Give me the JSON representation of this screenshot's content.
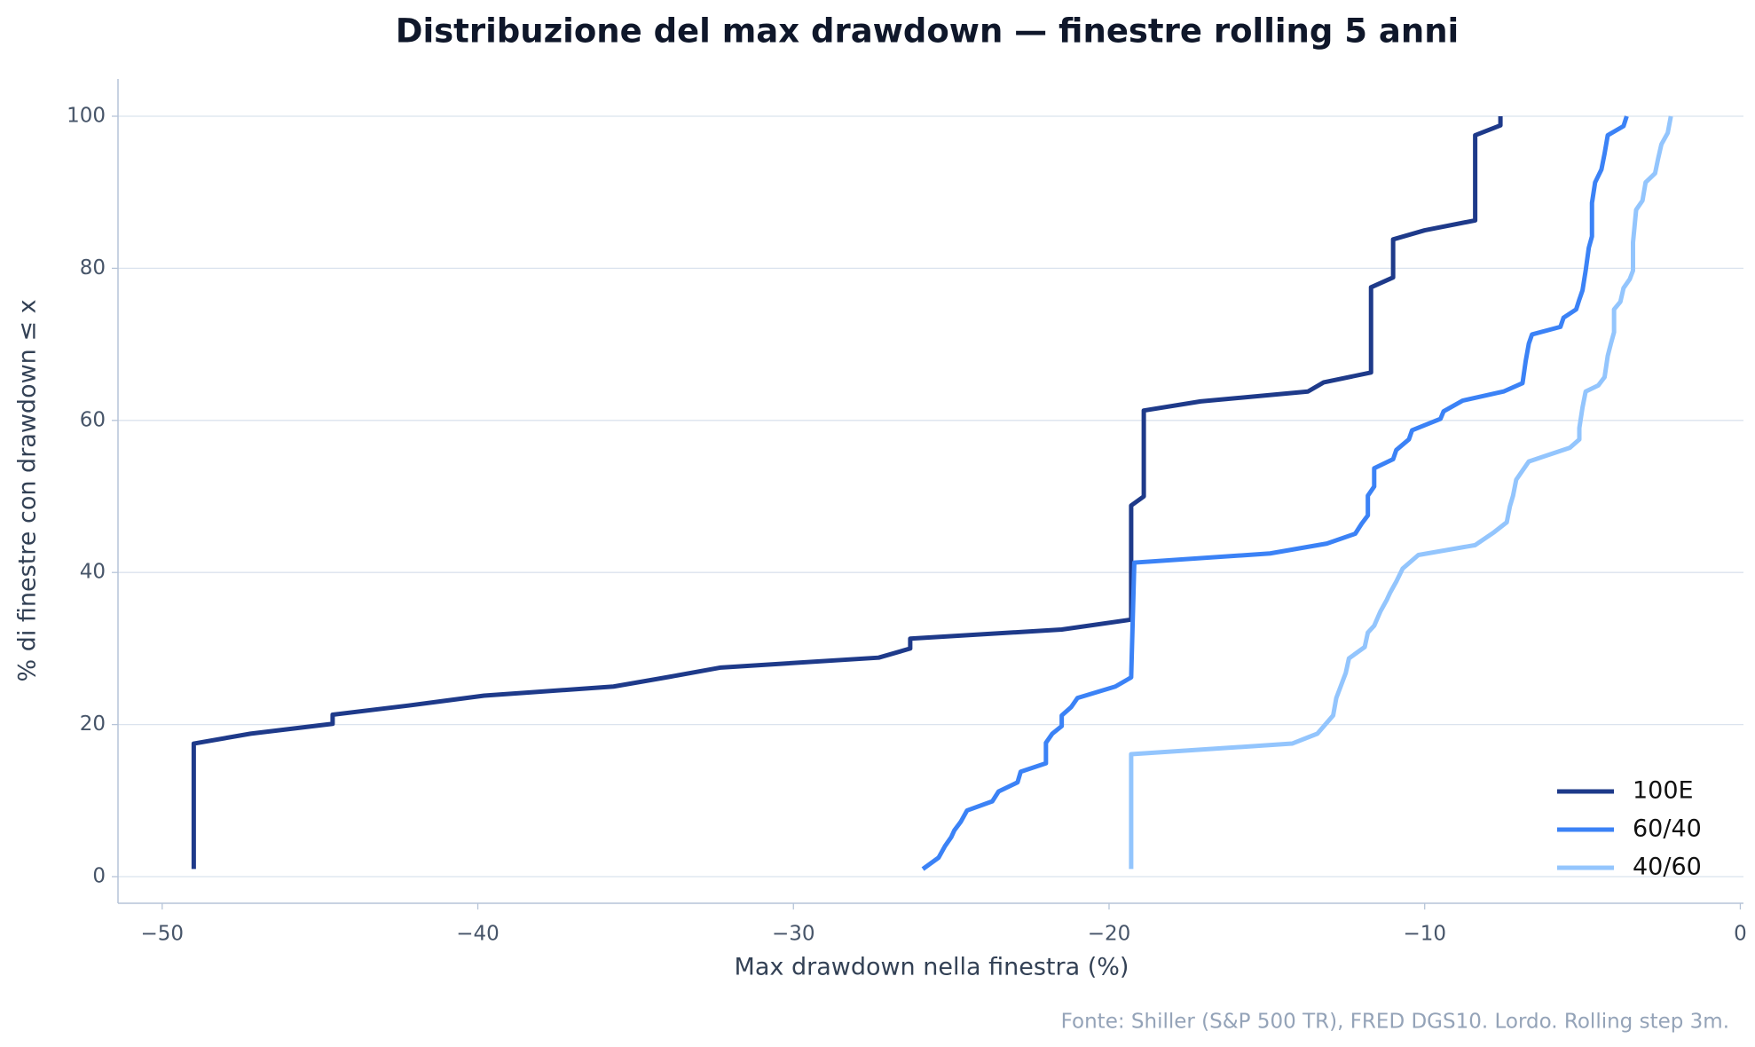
{
  "chart_data": {
    "type": "line",
    "title": "Distribuzione del max drawdown — finestre rolling 5 anni",
    "x_label": "Max drawdown nella finestra (%)",
    "y_label": "% di finestre con drawdown ≤ x",
    "source": "Fonte: Shiller (S&P 500 TR), FRED DGS10. Lordo. Rolling step 3m.",
    "xlim": [
      -51.4,
      0.1
    ],
    "ylim": [
      -3.5,
      104.9
    ],
    "xticks": [
      {
        "value": -50,
        "label": "−50"
      },
      {
        "value": -40,
        "label": "−40"
      },
      {
        "value": -30,
        "label": "−30"
      },
      {
        "value": -20,
        "label": "−20"
      },
      {
        "value": -10,
        "label": "−10"
      },
      0
    ],
    "yticks": [
      0,
      20,
      40,
      60,
      80,
      100
    ],
    "grid": "y",
    "legend": "lower right",
    "series": [
      {
        "name": "100E",
        "color": "#1e3a8a",
        "x": [
          -49.0,
          -49.0,
          -47.2,
          -44.6,
          -44.6,
          -42.2,
          -39.8,
          -35.7,
          -33.9,
          -32.3,
          -27.3,
          -26.3,
          -26.3,
          -21.5,
          -19.3,
          -19.3,
          -18.9,
          -18.9,
          -17.1,
          -13.7,
          -13.2,
          -11.7,
          -11.7,
          -11.0,
          -11.0,
          -10.0,
          -8.4,
          -8.4,
          -7.6,
          -7.6
        ],
        "values": [
          1.0,
          17.5,
          18.8,
          20.1,
          21.3,
          22.5,
          23.8,
          25.0,
          26.3,
          27.5,
          28.8,
          30.0,
          31.3,
          32.5,
          33.8,
          48.8,
          50.0,
          61.3,
          62.5,
          63.8,
          65.0,
          66.3,
          77.5,
          78.8,
          83.8,
          85.0,
          86.3,
          97.5,
          98.8,
          100.0
        ]
      },
      {
        "name": "60/40",
        "color": "#3b82f6",
        "x": [
          -25.9,
          -25.4,
          -25.2,
          -25.0,
          -24.9,
          -24.7,
          -24.5,
          -23.7,
          -23.5,
          -22.9,
          -22.8,
          -22.0,
          -22.0,
          -21.8,
          -21.5,
          -21.5,
          -21.2,
          -21.0,
          -19.8,
          -19.3,
          -19.2,
          -14.9,
          -13.1,
          -12.2,
          -12.0,
          -11.8,
          -11.8,
          -11.6,
          -11.6,
          -11.0,
          -10.9,
          -10.5,
          -10.4,
          -9.5,
          -9.4,
          -8.8,
          -7.5,
          -6.9,
          -6.8,
          -6.7,
          -6.6,
          -5.7,
          -5.6,
          -5.2,
          -5.1,
          -5.0,
          -4.9,
          -4.8,
          -4.7,
          -4.7,
          -4.6,
          -4.4,
          -4.3,
          -4.2,
          -3.7,
          -3.6
        ],
        "values": [
          1.0,
          2.5,
          4.0,
          5.2,
          6.1,
          7.2,
          8.7,
          9.9,
          11.2,
          12.4,
          13.8,
          14.9,
          17.6,
          18.8,
          19.8,
          21.2,
          22.3,
          23.5,
          25.0,
          26.2,
          41.3,
          42.5,
          43.8,
          45.1,
          46.4,
          47.5,
          50.1,
          51.3,
          53.7,
          54.9,
          56.1,
          57.5,
          58.7,
          60.2,
          61.2,
          62.6,
          63.8,
          64.9,
          67.8,
          70.1,
          71.3,
          72.3,
          73.5,
          74.6,
          75.9,
          77.1,
          79.7,
          82.7,
          84.2,
          88.6,
          91.3,
          93.0,
          95.1,
          97.5,
          98.7,
          100.0
        ]
      },
      {
        "name": "40/60",
        "color": "#93c5fd",
        "x": [
          -19.3,
          -19.3,
          -14.2,
          -13.4,
          -12.9,
          -12.8,
          -12.6,
          -12.5,
          -12.4,
          -11.9,
          -11.8,
          -11.6,
          -11.4,
          -11.2,
          -11.1,
          -10.9,
          -10.7,
          -10.2,
          -8.4,
          -7.8,
          -7.4,
          -7.3,
          -7.2,
          -7.1,
          -6.7,
          -6.2,
          -5.4,
          -5.1,
          -5.1,
          -5.0,
          -4.9,
          -4.5,
          -4.3,
          -4.2,
          -4.1,
          -4.0,
          -4.0,
          -3.8,
          -3.7,
          -3.5,
          -3.4,
          -3.4,
          -3.3,
          -3.1,
          -3.0,
          -2.7,
          -2.6,
          -2.5,
          -2.3,
          -2.2
        ],
        "values": [
          1.0,
          16.1,
          17.5,
          18.8,
          21.2,
          23.5,
          25.7,
          26.8,
          28.7,
          30.2,
          32.1,
          33.0,
          34.9,
          36.4,
          37.3,
          38.8,
          40.5,
          42.3,
          43.6,
          45.3,
          46.6,
          48.7,
          50.1,
          52.2,
          54.6,
          55.3,
          56.4,
          57.5,
          59.0,
          61.7,
          63.8,
          64.6,
          65.7,
          68.5,
          70.1,
          71.6,
          74.6,
          75.6,
          77.4,
          78.6,
          79.7,
          83.4,
          87.7,
          88.9,
          91.3,
          92.5,
          94.5,
          96.3,
          97.8,
          100.0
        ]
      }
    ]
  }
}
